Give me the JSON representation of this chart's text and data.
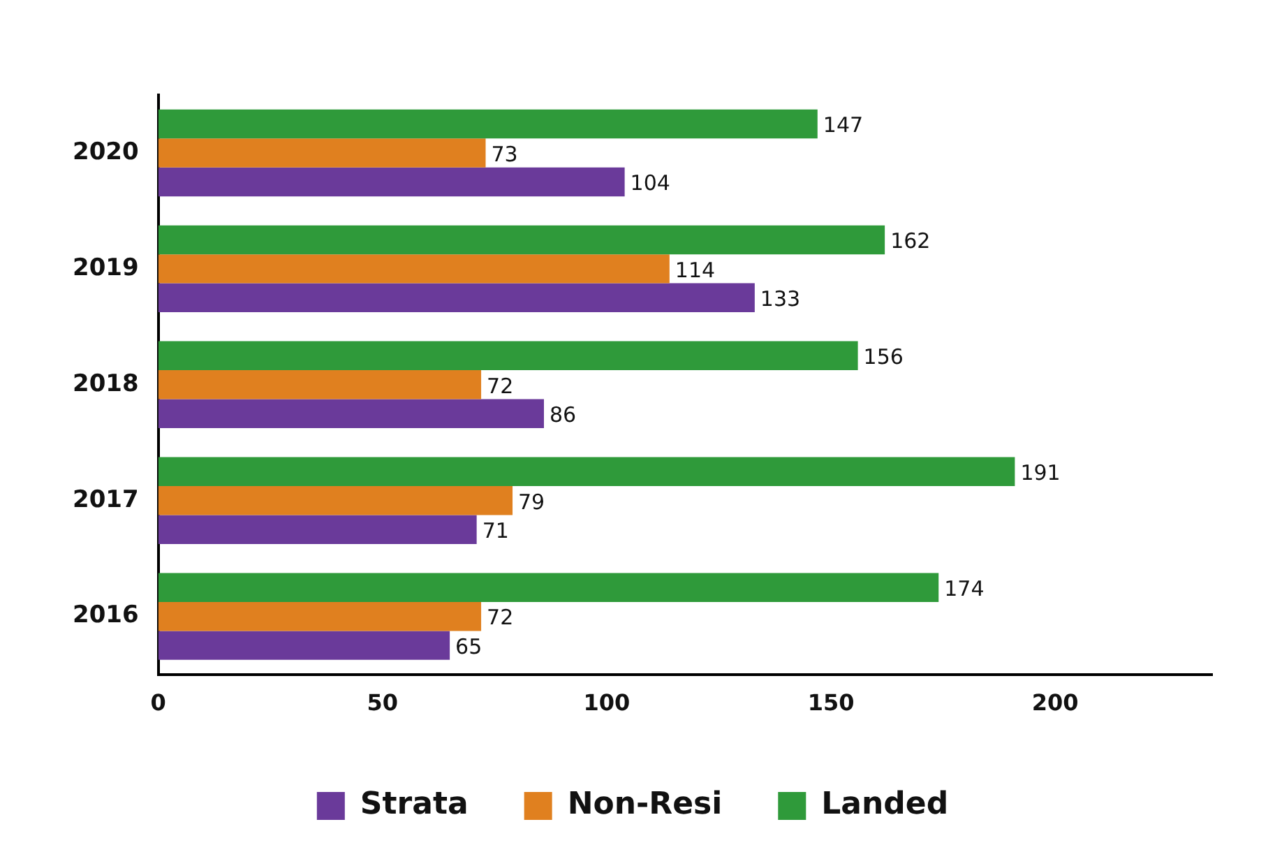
{
  "chart_data": {
    "type": "bar",
    "orientation": "horizontal",
    "categories": [
      "2020",
      "2019",
      "2018",
      "2017",
      "2016"
    ],
    "series": [
      {
        "name": "Strata",
        "color": "#6a3a9a",
        "values": [
          104,
          133,
          86,
          71,
          65
        ]
      },
      {
        "name": "Non-Resi",
        "color": "#e0801f",
        "values": [
          73,
          114,
          72,
          79,
          72
        ]
      },
      {
        "name": "Landed",
        "color": "#2f9a3a",
        "values": [
          147,
          162,
          156,
          191,
          174
        ]
      }
    ],
    "xlim": [
      0,
      235
    ],
    "xticks": [
      0,
      50,
      100,
      150,
      200
    ],
    "grid": false,
    "legend": "bottom",
    "data_labels": true
  }
}
